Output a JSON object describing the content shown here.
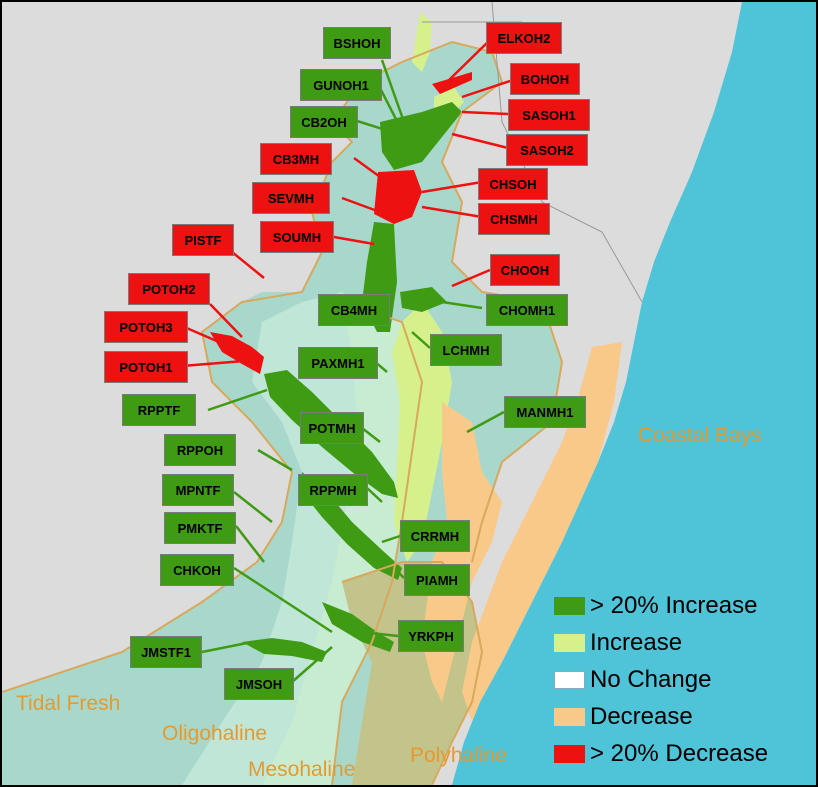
{
  "colors": {
    "ocean": "#4fc3d8",
    "land": "#dcdcdc",
    "region_teal": "#a8d8cc",
    "region_mint": "#c8ecd2",
    "region_olive": "#c2c48c",
    "increase_strong": "#3f9b14",
    "increase": "#d6f18c",
    "no_change": "#ffffff",
    "decrease": "#f9c98a",
    "decrease_strong": "#ee1111",
    "salinity_label": "#e69a2e",
    "boundary": "#d8a85c"
  },
  "stations": [
    {
      "id": "BSHOH",
      "class": "increase_strong"
    },
    {
      "id": "GUNOH1",
      "class": "increase_strong"
    },
    {
      "id": "CB2OH",
      "class": "increase_strong"
    },
    {
      "id": "CB3MH",
      "class": "decrease_strong"
    },
    {
      "id": "SEVMH",
      "class": "decrease_strong"
    },
    {
      "id": "SOUMH",
      "class": "decrease_strong"
    },
    {
      "id": "PISTF",
      "class": "decrease_strong"
    },
    {
      "id": "POTOH2",
      "class": "decrease_strong"
    },
    {
      "id": "POTOH3",
      "class": "decrease_strong"
    },
    {
      "id": "POTOH1",
      "class": "decrease_strong"
    },
    {
      "id": "CB4MH",
      "class": "increase_strong"
    },
    {
      "id": "PAXMH1",
      "class": "increase_strong"
    },
    {
      "id": "RPPTF",
      "class": "increase_strong"
    },
    {
      "id": "POTMH",
      "class": "increase_strong"
    },
    {
      "id": "RPPOH",
      "class": "increase_strong"
    },
    {
      "id": "MPNTF",
      "class": "increase_strong"
    },
    {
      "id": "RPPMH",
      "class": "increase_strong"
    },
    {
      "id": "PMKTF",
      "class": "increase_strong"
    },
    {
      "id": "CHKOH",
      "class": "increase_strong"
    },
    {
      "id": "JMSTF1",
      "class": "increase_strong"
    },
    {
      "id": "JMSOH",
      "class": "increase_strong"
    },
    {
      "id": "ELKOH2",
      "class": "decrease_strong"
    },
    {
      "id": "BOHOH",
      "class": "decrease_strong"
    },
    {
      "id": "SASOH1",
      "class": "decrease_strong"
    },
    {
      "id": "SASOH2",
      "class": "decrease_strong"
    },
    {
      "id": "CHSOH",
      "class": "decrease_strong"
    },
    {
      "id": "CHSMH",
      "class": "decrease_strong"
    },
    {
      "id": "CHOOH",
      "class": "decrease_strong"
    },
    {
      "id": "CHOMH1",
      "class": "increase_strong"
    },
    {
      "id": "LCHMH",
      "class": "increase_strong"
    },
    {
      "id": "MANMH1",
      "class": "increase_strong"
    },
    {
      "id": "CRRMH",
      "class": "increase_strong"
    },
    {
      "id": "PIAMH",
      "class": "increase_strong"
    },
    {
      "id": "YRKPH",
      "class": "increase_strong"
    }
  ],
  "regions": {
    "coastal_bays": "Coastal Bays",
    "tidal_fresh": "Tidal Fresh",
    "oligohaline": "Oligohaline",
    "mesohaline": "Mesohaline",
    "polyhaline": "Polyhaline"
  },
  "legend": [
    {
      "label": "> 20% Increase",
      "color": "#3f9b14"
    },
    {
      "label": "Increase",
      "color": "#d6f18c"
    },
    {
      "label": "No Change",
      "color": "#ffffff"
    },
    {
      "label": "Decrease",
      "color": "#f9c98a"
    },
    {
      "label": "> 20% Decrease",
      "color": "#ee1111"
    }
  ]
}
